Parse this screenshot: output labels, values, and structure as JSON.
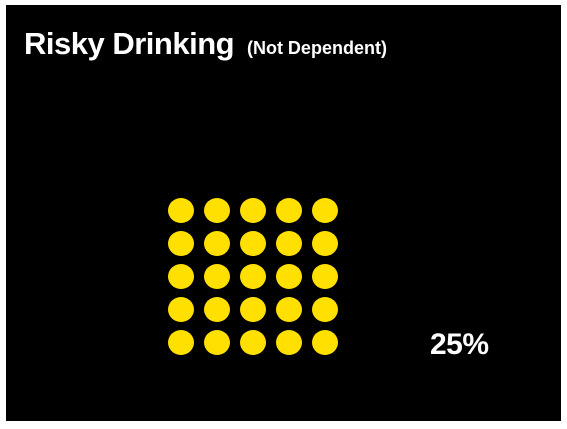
{
  "title": {
    "main": "Risky Drinking",
    "sub": "(Not Dependent)"
  },
  "dots": {
    "rows": 5,
    "cols": 5,
    "color": "#FFE000"
  },
  "percent": "25%"
}
